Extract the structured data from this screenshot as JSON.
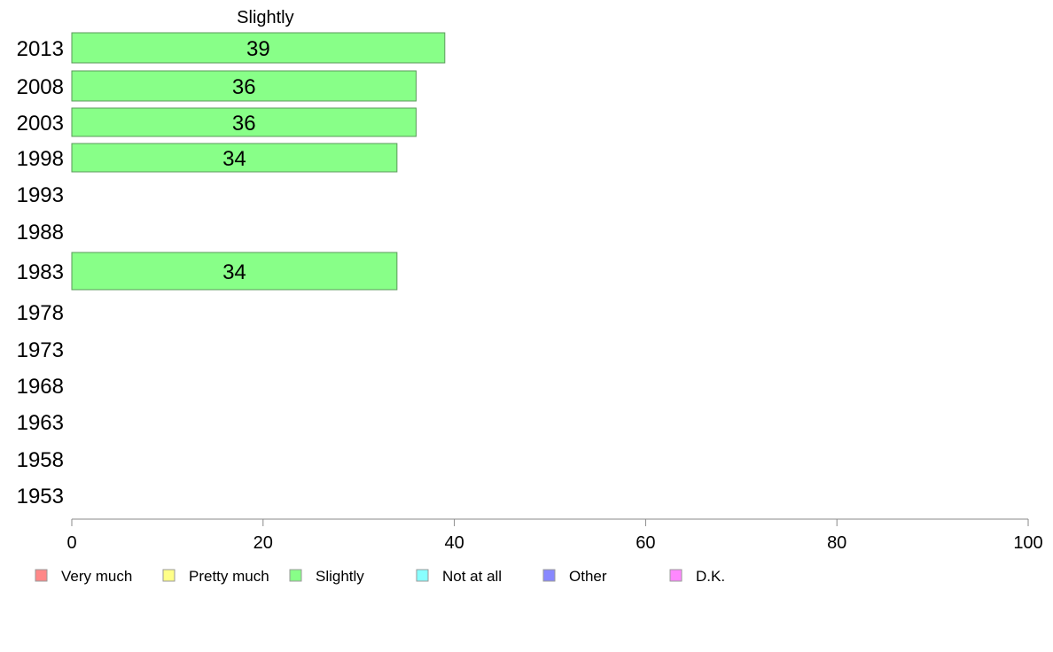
{
  "chart_data": {
    "type": "bar",
    "orientation": "horizontal",
    "title": "Slightly",
    "categories": [
      "2013",
      "2008",
      "2003",
      "1998",
      "1993",
      "1988",
      "1983",
      "1978",
      "1973",
      "1968",
      "1963",
      "1958",
      "1953"
    ],
    "series": [
      {
        "name": "Slightly",
        "color": "#88ff88",
        "values": [
          39,
          36,
          36,
          34,
          null,
          null,
          34,
          null,
          null,
          null,
          null,
          null,
          null
        ]
      }
    ],
    "xlim": [
      0,
      100
    ],
    "xticks": [
      0,
      20,
      40,
      60,
      80,
      100
    ],
    "grid": false,
    "legend_position": "bottom",
    "legend": [
      {
        "name": "Very much",
        "color": "#ff8888"
      },
      {
        "name": "Pretty much",
        "color": "#ffff88"
      },
      {
        "name": "Slightly",
        "color": "#88ff88"
      },
      {
        "name": "Not at all",
        "color": "#88ffff"
      },
      {
        "name": "Other",
        "color": "#8888ff"
      },
      {
        "name": "D.K.",
        "color": "#ff88ff"
      }
    ]
  }
}
